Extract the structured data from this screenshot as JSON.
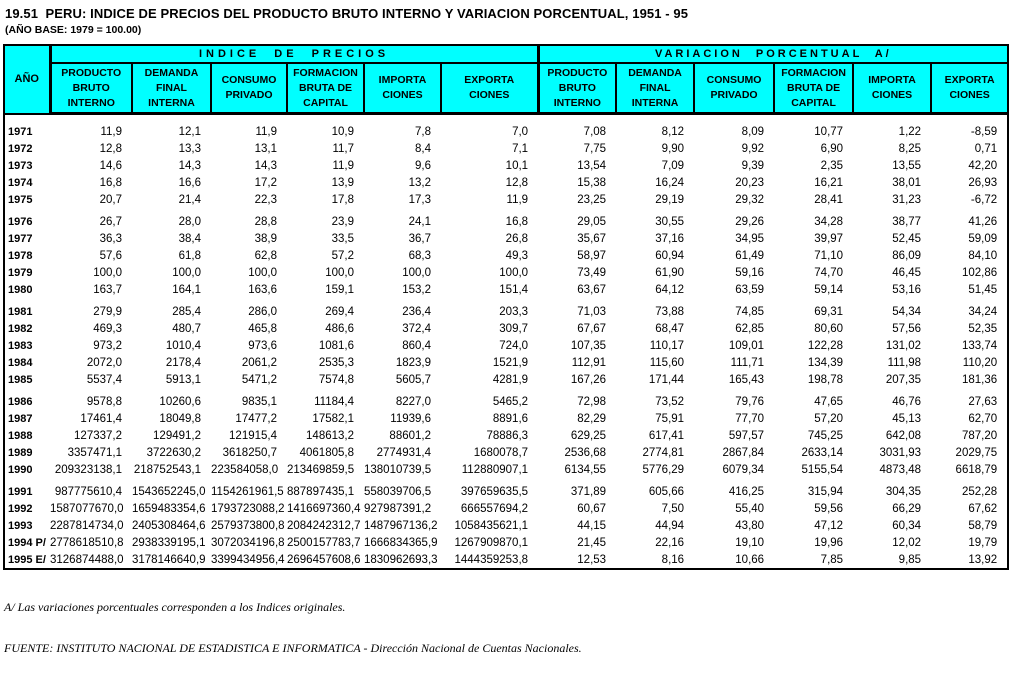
{
  "title": "19.51  PERU: INDICE DE PRECIOS DEL PRODUCTO BRUTO INTERNO Y VARIACION PORCENTUAL, 1951 - 95",
  "subtitle": "(AÑO BASE: 1979 = 100.00)",
  "colors": {
    "header_bg": "#00ffff",
    "border": "#000000",
    "text": "#000000"
  },
  "table": {
    "year_header": "AÑO",
    "groups": [
      {
        "label": "INDICE DE PRECIOS",
        "columns": [
          "PRODUCTO\nBRUTO\nINTERNO",
          "DEMANDA\nFINAL\nINTERNA",
          "CONSUMO\nPRIVADO",
          "FORMACION\nBRUTA DE\nCAPITAL",
          "IMPORTA\nCIONES",
          "EXPORTA\nCIONES"
        ]
      },
      {
        "label": "VARIACION PORCENTUAL A/",
        "columns": [
          "PRODUCTO\nBRUTO\nINTERNO",
          "DEMANDA\nFINAL\nINTERNA",
          "CONSUMO\nPRIVADO",
          "FORMACION\nBRUTA DE\nCAPITAL",
          "IMPORTA\nCIONES",
          "EXPORTA\nCIONES"
        ]
      }
    ],
    "blocks": [
      [
        {
          "year": "1971",
          "values": [
            "11,9",
            "12,1",
            "11,9",
            "10,9",
            "7,8",
            "7,0",
            "7,08",
            "8,12",
            "8,09",
            "10,77",
            "1,22",
            "-8,59"
          ]
        },
        {
          "year": "1972",
          "values": [
            "12,8",
            "13,3",
            "13,1",
            "11,7",
            "8,4",
            "7,1",
            "7,75",
            "9,90",
            "9,92",
            "6,90",
            "8,25",
            "0,71"
          ]
        },
        {
          "year": "1973",
          "values": [
            "14,6",
            "14,3",
            "14,3",
            "11,9",
            "9,6",
            "10,1",
            "13,54",
            "7,09",
            "9,39",
            "2,35",
            "13,55",
            "42,20"
          ]
        },
        {
          "year": "1974",
          "values": [
            "16,8",
            "16,6",
            "17,2",
            "13,9",
            "13,2",
            "12,8",
            "15,38",
            "16,24",
            "20,23",
            "16,21",
            "38,01",
            "26,93"
          ]
        },
        {
          "year": "1975",
          "values": [
            "20,7",
            "21,4",
            "22,3",
            "17,8",
            "17,3",
            "11,9",
            "23,25",
            "29,19",
            "29,32",
            "28,41",
            "31,23",
            "-6,72"
          ]
        }
      ],
      [
        {
          "year": "1976",
          "values": [
            "26,7",
            "28,0",
            "28,8",
            "23,9",
            "24,1",
            "16,8",
            "29,05",
            "30,55",
            "29,26",
            "34,28",
            "38,77",
            "41,26"
          ]
        },
        {
          "year": "1977",
          "values": [
            "36,3",
            "38,4",
            "38,9",
            "33,5",
            "36,7",
            "26,8",
            "35,67",
            "37,16",
            "34,95",
            "39,97",
            "52,45",
            "59,09"
          ]
        },
        {
          "year": "1978",
          "values": [
            "57,6",
            "61,8",
            "62,8",
            "57,2",
            "68,3",
            "49,3",
            "58,97",
            "60,94",
            "61,49",
            "71,10",
            "86,09",
            "84,10"
          ]
        },
        {
          "year": "1979",
          "values": [
            "100,0",
            "100,0",
            "100,0",
            "100,0",
            "100,0",
            "100,0",
            "73,49",
            "61,90",
            "59,16",
            "74,70",
            "46,45",
            "102,86"
          ]
        },
        {
          "year": "1980",
          "values": [
            "163,7",
            "164,1",
            "163,6",
            "159,1",
            "153,2",
            "151,4",
            "63,67",
            "64,12",
            "63,59",
            "59,14",
            "53,16",
            "51,45"
          ]
        }
      ],
      [
        {
          "year": "1981",
          "values": [
            "279,9",
            "285,4",
            "286,0",
            "269,4",
            "236,4",
            "203,3",
            "71,03",
            "73,88",
            "74,85",
            "69,31",
            "54,34",
            "34,24"
          ]
        },
        {
          "year": "1982",
          "values": [
            "469,3",
            "480,7",
            "465,8",
            "486,6",
            "372,4",
            "309,7",
            "67,67",
            "68,47",
            "62,85",
            "80,60",
            "57,56",
            "52,35"
          ]
        },
        {
          "year": "1983",
          "values": [
            "973,2",
            "1010,4",
            "973,6",
            "1081,6",
            "860,4",
            "724,0",
            "107,35",
            "110,17",
            "109,01",
            "122,28",
            "131,02",
            "133,74"
          ]
        },
        {
          "year": "1984",
          "values": [
            "2072,0",
            "2178,4",
            "2061,2",
            "2535,3",
            "1823,9",
            "1521,9",
            "112,91",
            "115,60",
            "111,71",
            "134,39",
            "111,98",
            "110,20"
          ]
        },
        {
          "year": "1985",
          "values": [
            "5537,4",
            "5913,1",
            "5471,2",
            "7574,8",
            "5605,7",
            "4281,9",
            "167,26",
            "171,44",
            "165,43",
            "198,78",
            "207,35",
            "181,36"
          ]
        }
      ],
      [
        {
          "year": "1986",
          "values": [
            "9578,8",
            "10260,6",
            "9835,1",
            "11184,4",
            "8227,0",
            "5465,2",
            "72,98",
            "73,52",
            "79,76",
            "47,65",
            "46,76",
            "27,63"
          ]
        },
        {
          "year": "1987",
          "values": [
            "17461,4",
            "18049,8",
            "17477,2",
            "17582,1",
            "11939,6",
            "8891,6",
            "82,29",
            "75,91",
            "77,70",
            "57,20",
            "45,13",
            "62,70"
          ]
        },
        {
          "year": "1988",
          "values": [
            "127337,2",
            "129491,2",
            "121915,4",
            "148613,2",
            "88601,2",
            "78886,3",
            "629,25",
            "617,41",
            "597,57",
            "745,25",
            "642,08",
            "787,20"
          ]
        },
        {
          "year": "1989",
          "values": [
            "3357471,1",
            "3722630,2",
            "3618250,7",
            "4061805,8",
            "2774931,4",
            "1680078,7",
            "2536,68",
            "2774,81",
            "2867,84",
            "2633,14",
            "3031,93",
            "2029,75"
          ]
        },
        {
          "year": "1990",
          "values": [
            "209323138,1",
            "218752543,1",
            "223584058,0",
            "213469859,5",
            "138010739,5",
            "112880907,1",
            "6134,55",
            "5776,29",
            "6079,34",
            "5155,54",
            "4873,48",
            "6618,79"
          ]
        }
      ],
      [
        {
          "year": "1991",
          "values": [
            "987775610,4",
            "1543652245,0",
            "1154261961,5",
            "887897435,1",
            "558039706,5",
            "397659635,5",
            "371,89",
            "605,66",
            "416,25",
            "315,94",
            "304,35",
            "252,28"
          ]
        },
        {
          "year": "1992",
          "values": [
            "1587077670,0",
            "1659483354,6",
            "1793723088,2",
            "1416697360,4",
            "927987391,2",
            "666557694,2",
            "60,67",
            "7,50",
            "55,40",
            "59,56",
            "66,29",
            "67,62"
          ]
        },
        {
          "year": "1993",
          "values": [
            "2287814734,0",
            "2405308464,6",
            "2579373800,8",
            "2084242312,7",
            "1487967136,2",
            "1058435621,1",
            "44,15",
            "44,94",
            "43,80",
            "47,12",
            "60,34",
            "58,79"
          ]
        },
        {
          "year": "1994 P/",
          "values": [
            "2778618510,8",
            "2938339195,1",
            "3072034196,8",
            "2500157783,7",
            "1666834365,9",
            "1267909870,1",
            "21,45",
            "22,16",
            "19,10",
            "19,96",
            "12,02",
            "19,79"
          ]
        },
        {
          "year": "1995 E/",
          "values": [
            "3126874488,0",
            "3178146640,9",
            "3399434956,4",
            "2696457608,6",
            "1830962693,3",
            "1444359253,8",
            "12,53",
            "8,16",
            "10,66",
            "7,85",
            "9,85",
            "13,92"
          ]
        }
      ]
    ]
  },
  "footnotes": [
    "A/ Las variaciones porcentuales corresponden a los Indices originales.",
    "FUENTE: INSTITUTO NACIONAL DE ESTADISTICA E INFORMATICA - Dirección Nacional de Cuentas Nacionales."
  ]
}
